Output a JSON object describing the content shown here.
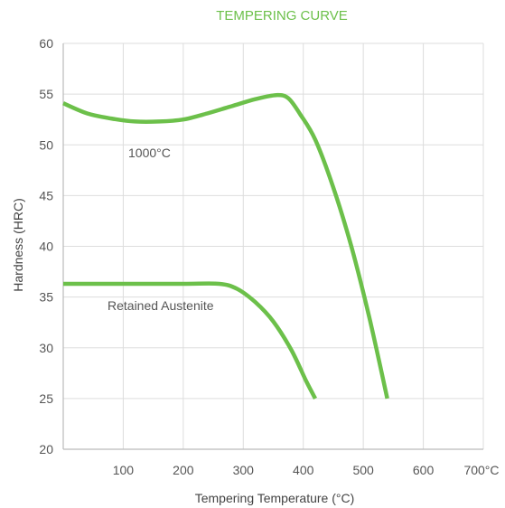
{
  "chart_data": {
    "type": "line",
    "title": "TEMPERING CURVE",
    "xlabel": "Tempering Temperature (°C)",
    "ylabel": "Hardness (HRC)",
    "xlim": [
      0,
      700
    ],
    "ylim": [
      20,
      60
    ],
    "x_ticks": [
      100,
      200,
      300,
      400,
      500,
      600,
      700
    ],
    "x_tick_labels": [
      "100",
      "200",
      "300",
      "400",
      "500",
      "600",
      "700°C"
    ],
    "y_ticks": [
      20,
      25,
      30,
      35,
      40,
      45,
      50,
      55,
      60
    ],
    "y_tick_labels": [
      "20",
      "25",
      "30",
      "35",
      "40",
      "45",
      "50",
      "55",
      "60"
    ],
    "grid": true,
    "series_color": "#6cc04a",
    "series": [
      {
        "name": "1000°C",
        "points": [
          [
            0,
            54.1
          ],
          [
            40,
            53.1
          ],
          [
            80,
            52.6
          ],
          [
            120,
            52.3
          ],
          [
            160,
            52.3
          ],
          [
            200,
            52.5
          ],
          [
            240,
            53.1
          ],
          [
            280,
            53.8
          ],
          [
            320,
            54.5
          ],
          [
            355,
            54.9
          ],
          [
            375,
            54.6
          ],
          [
            395,
            53.0
          ],
          [
            420,
            50.5
          ],
          [
            450,
            45.8
          ],
          [
            480,
            40.0
          ],
          [
            510,
            33.0
          ],
          [
            540,
            25.0
          ]
        ]
      },
      {
        "name": "Retained Austenite",
        "points": [
          [
            0,
            36.3
          ],
          [
            100,
            36.3
          ],
          [
            200,
            36.3
          ],
          [
            260,
            36.3
          ],
          [
            290,
            35.8
          ],
          [
            320,
            34.5
          ],
          [
            350,
            32.6
          ],
          [
            380,
            29.8
          ],
          [
            405,
            26.7
          ],
          [
            420,
            25.0
          ]
        ]
      }
    ]
  }
}
